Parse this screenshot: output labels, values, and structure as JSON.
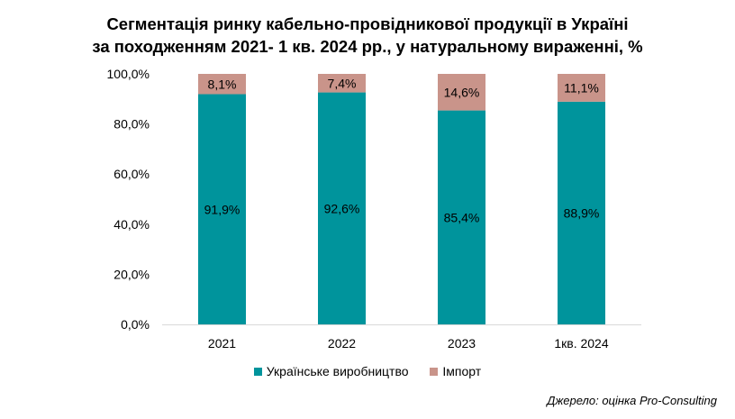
{
  "chart_data": {
    "type": "bar",
    "stacked": true,
    "title_lines": [
      "Сегментація ринку кабельно-провідникової продукції в Україні",
      "за походженням 2021- 1 кв. 2024 рр., у натуральному вираженні, %"
    ],
    "categories": [
      "2021",
      "2022",
      "2023",
      "1кв. 2024"
    ],
    "series": [
      {
        "name": "Українське виробництво",
        "color": "#00949C",
        "values": [
          91.9,
          92.6,
          85.4,
          88.9
        ],
        "labels": [
          "91,9%",
          "92,6%",
          "85,4%",
          "88,9%"
        ]
      },
      {
        "name": "Імпорт",
        "color": "#C9948A",
        "values": [
          8.1,
          7.4,
          14.6,
          11.1
        ],
        "labels": [
          "8,1%",
          "7,4%",
          "14,6%",
          "11,1%"
        ]
      }
    ],
    "yticks": [
      0,
      20,
      40,
      60,
      80,
      100
    ],
    "ytick_labels": [
      "0,0%",
      "20,0%",
      "40,0%",
      "60,0%",
      "80,0%",
      "100,0%"
    ],
    "ylim": [
      0,
      100
    ],
    "grid": false,
    "legend_position": "bottom",
    "source": "Джерело: оцінка Pro-Consulting"
  }
}
